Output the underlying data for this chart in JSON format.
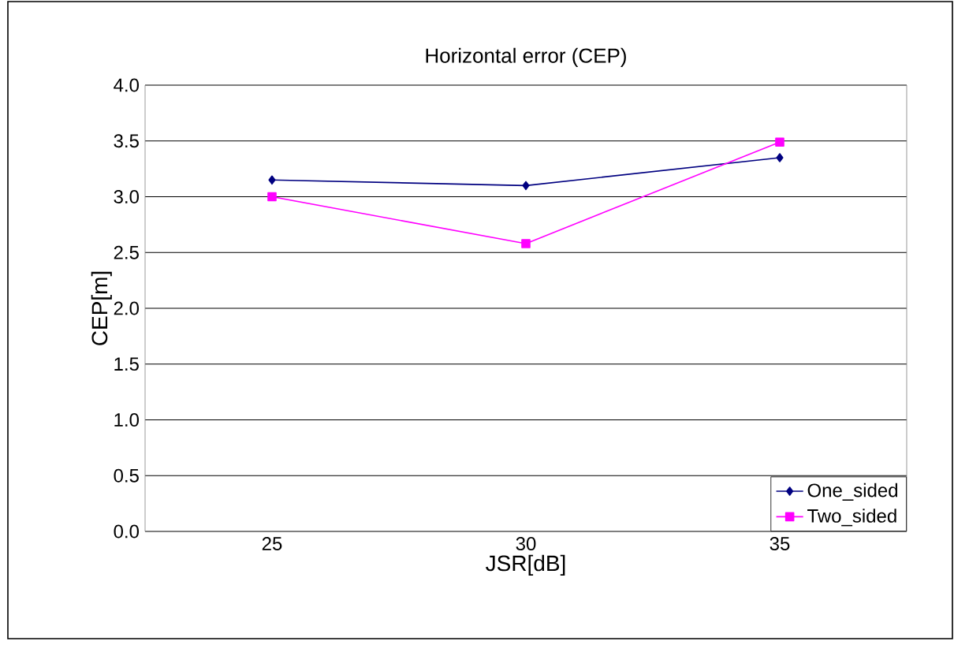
{
  "chart_data": {
    "type": "line",
    "title": "Horizontal error (CEP)",
    "xlabel": "JSR[dB]",
    "ylabel": "CEP[m]",
    "categories": [
      "25",
      "30",
      "35"
    ],
    "series": [
      {
        "name": "One_sided",
        "color": "#000080",
        "marker": "diamond",
        "values": [
          3.15,
          3.1,
          3.35
        ]
      },
      {
        "name": "Two_sided",
        "color": "#ff00ff",
        "marker": "square",
        "values": [
          3.0,
          2.58,
          3.49
        ]
      }
    ],
    "ylim": [
      0,
      4
    ],
    "yticks": [
      {
        "value": 0,
        "label": "0.0"
      },
      {
        "value": 0.5,
        "label": "0.5"
      },
      {
        "value": 1,
        "label": "1.0"
      },
      {
        "value": 1.5,
        "label": "1.5"
      },
      {
        "value": 2,
        "label": "2.0"
      },
      {
        "value": 2.5,
        "label": "2.5"
      },
      {
        "value": 3,
        "label": "3.0"
      },
      {
        "value": 3.5,
        "label": "3.5"
      },
      {
        "value": 4,
        "label": "4.0"
      }
    ],
    "grid": "y",
    "legend": "bottom right"
  }
}
